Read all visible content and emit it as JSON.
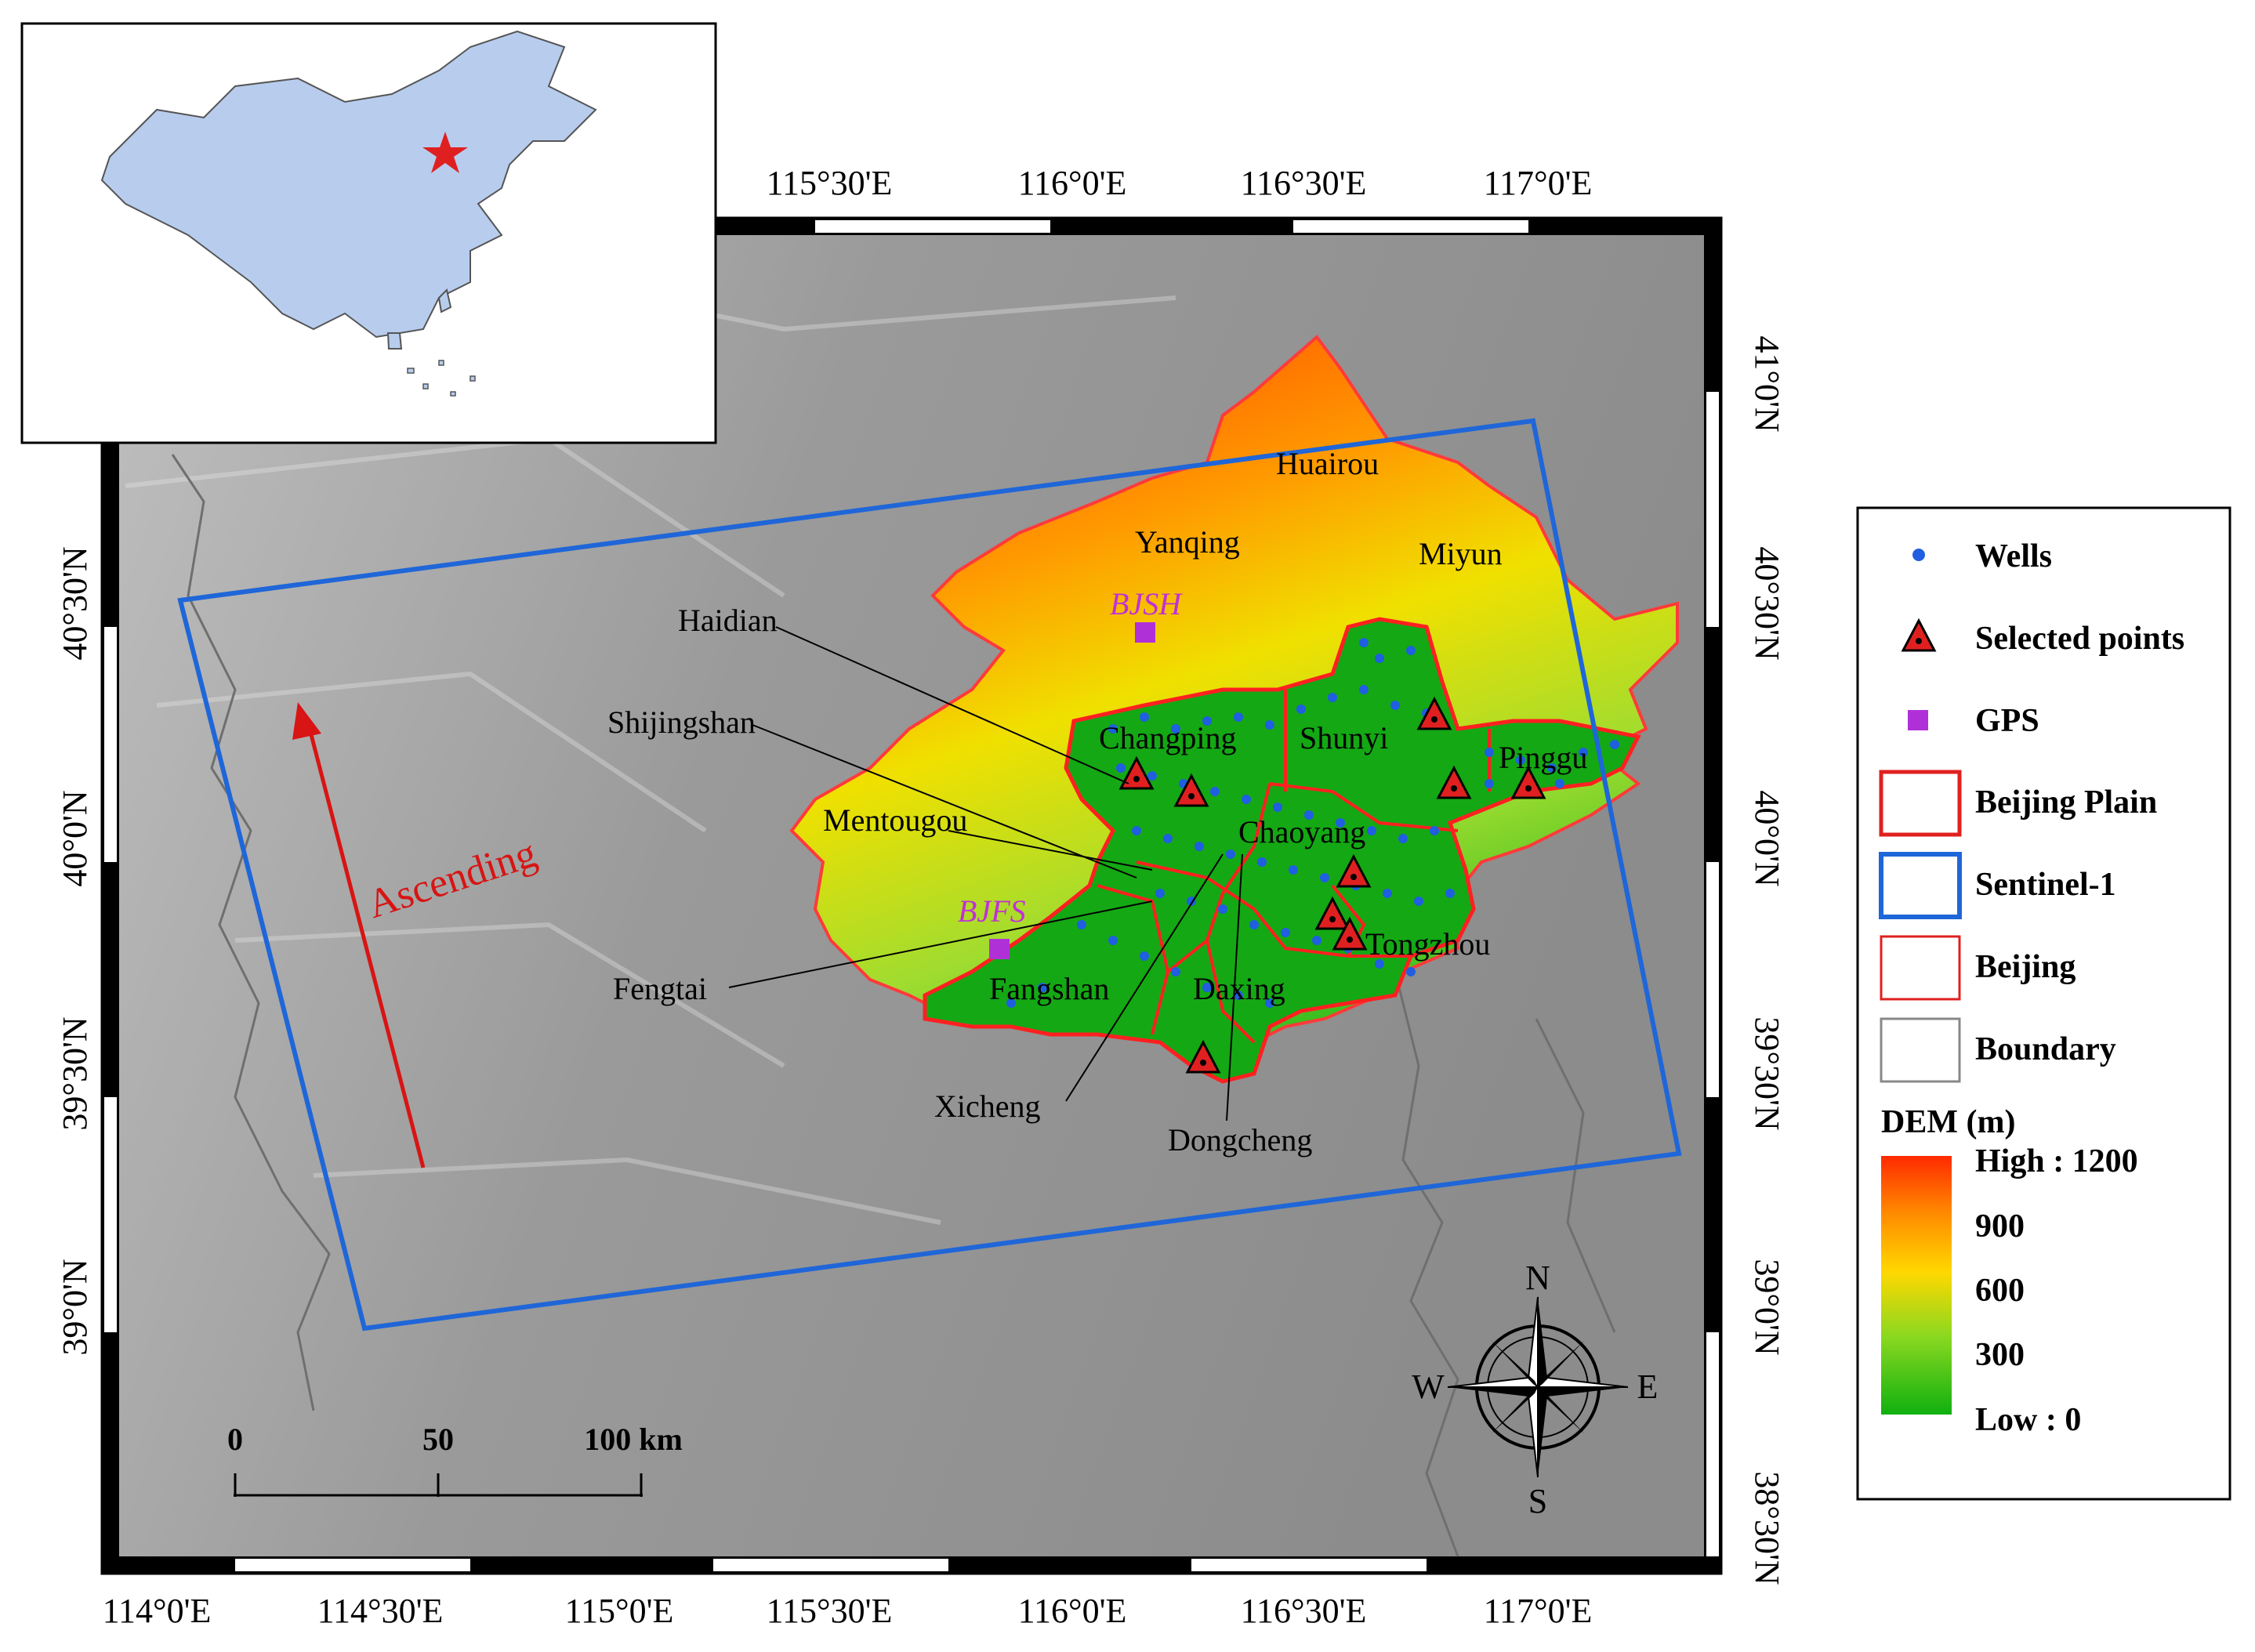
{
  "map": {
    "lon_ticks": [
      "114°0'E",
      "114°30'E",
      "115°0'E",
      "115°30'E",
      "116°0'E",
      "116°30'E",
      "117°0'E"
    ],
    "top_lon_ticks": [
      "115°30'E",
      "116°0'E",
      "116°30'E",
      "117°0'E"
    ],
    "lat_ticks_left": [
      "40°30'N",
      "40°0'N",
      "39°30'N",
      "39°0'N"
    ],
    "lat_ticks_right": [
      "41°0'N",
      "40°30'N",
      "40°0'N",
      "39°30'N",
      "39°0'N",
      "38°30'N"
    ],
    "districts": [
      "Huairou",
      "Yanqing",
      "Miyun",
      "Haidian",
      "Shijingshan",
      "Changping",
      "Shunyi",
      "Pinggu",
      "Mentougou",
      "Chaoyang",
      "Fengtai",
      "Fangshan",
      "Daxing",
      "Tongzhou",
      "Xicheng",
      "Dongcheng"
    ],
    "gps_stations": [
      "BJSH",
      "BJFS"
    ],
    "ascending_label": "Ascending",
    "compass": {
      "n": "N",
      "s": "S",
      "e": "E",
      "w": "W"
    },
    "scale_bar": {
      "labels": [
        "0",
        "50",
        "100 km"
      ]
    }
  },
  "legend": {
    "items": [
      "Wells",
      "Selected points",
      "GPS",
      "Beijing Plain",
      "Sentinel-1",
      "Beijing",
      "Boundary"
    ],
    "dem_title": "DEM (m)",
    "dem_ticks": [
      "High : 1200",
      "900",
      "600",
      "300",
      "Low : 0"
    ],
    "colors": {
      "wells": "#1f5fe0",
      "selected": "#e02020",
      "gps": "#b030d8",
      "plain": "#e02020",
      "sentinel": "#1f66d8",
      "beijing": "#e02020",
      "boundary": "#888888"
    }
  }
}
